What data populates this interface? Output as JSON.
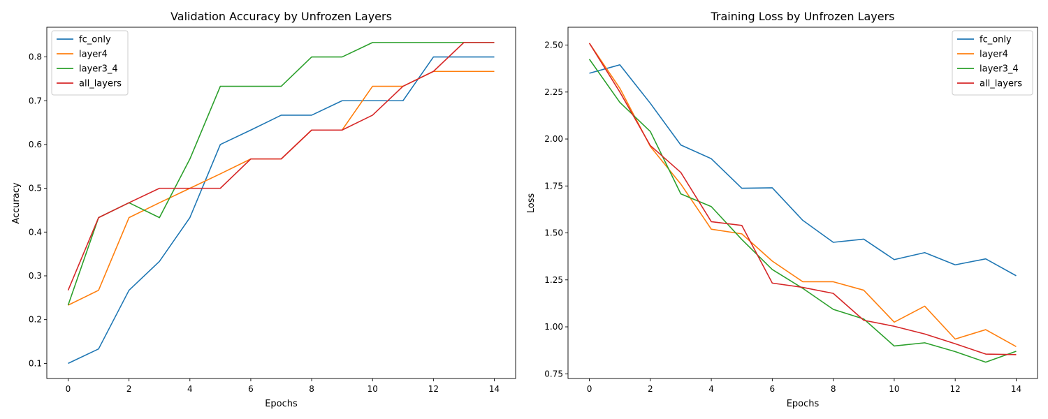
{
  "colors": {
    "fc_only": "#1f77b4",
    "layer4": "#ff7f0e",
    "layer3_4": "#2ca02c",
    "all_layers": "#d62728"
  },
  "chart_data": [
    {
      "type": "line",
      "title": "Validation Accuracy by Unfrozen Layers",
      "xlabel": "Epochs",
      "ylabel": "Accuracy",
      "x": [
        0,
        1,
        2,
        3,
        4,
        5,
        6,
        7,
        8,
        9,
        10,
        11,
        12,
        13,
        14
      ],
      "xlim": [
        -0.7,
        14.7
      ],
      "ylim": [
        0.0655,
        0.8679
      ],
      "xticks": [
        0,
        2,
        4,
        6,
        8,
        10,
        12,
        14
      ],
      "yticks": [
        0.1,
        0.2,
        0.3,
        0.4,
        0.5,
        0.6,
        0.7,
        0.8
      ],
      "ytick_labels": [
        "0.1",
        "0.2",
        "0.3",
        "0.4",
        "0.5",
        "0.6",
        "0.7",
        "0.8"
      ],
      "grid": false,
      "legend_position": "upper-left",
      "series": [
        {
          "name": "fc_only",
          "color_key": "fc_only",
          "values": [
            0.1,
            0.133,
            0.267,
            0.333,
            0.433,
            0.6,
            0.633,
            0.667,
            0.667,
            0.7,
            0.7,
            0.7,
            0.8,
            0.8,
            0.8
          ]
        },
        {
          "name": "layer4",
          "color_key": "layer4",
          "values": [
            0.233,
            0.267,
            0.433,
            0.467,
            0.5,
            0.533,
            0.567,
            0.567,
            0.633,
            0.633,
            0.733,
            0.733,
            0.767,
            0.767,
            0.767
          ]
        },
        {
          "name": "layer3_4",
          "color_key": "layer3_4",
          "values": [
            0.233,
            0.433,
            0.467,
            0.433,
            0.567,
            0.733,
            0.733,
            0.733,
            0.8,
            0.8,
            0.833,
            0.833,
            0.833,
            0.833,
            0.833
          ]
        },
        {
          "name": "all_layers",
          "color_key": "all_layers",
          "values": [
            0.267,
            0.433,
            0.467,
            0.5,
            0.5,
            0.5,
            0.567,
            0.567,
            0.633,
            0.633,
            0.667,
            0.733,
            0.767,
            0.833,
            0.833
          ]
        }
      ]
    },
    {
      "type": "line",
      "title": "Training Loss by Unfrozen Layers",
      "xlabel": "Epochs",
      "ylabel": "Loss",
      "x": [
        0,
        1,
        2,
        3,
        4,
        5,
        6,
        7,
        8,
        9,
        10,
        11,
        12,
        13,
        14
      ],
      "xlim": [
        -0.7,
        14.7
      ],
      "ylim": [
        0.725,
        2.595
      ],
      "xticks": [
        0,
        2,
        4,
        6,
        8,
        10,
        12,
        14
      ],
      "yticks": [
        0.75,
        1.0,
        1.25,
        1.5,
        1.75,
        2.0,
        2.25,
        2.5
      ],
      "ytick_labels": [
        "0.75",
        "1.00",
        "1.25",
        "1.50",
        "1.75",
        "2.00",
        "2.25",
        "2.50"
      ],
      "grid": false,
      "legend_position": "upper-right",
      "series": [
        {
          "name": "fc_only",
          "color_key": "fc_only",
          "values": [
            2.35,
            2.395,
            2.19,
            1.968,
            1.895,
            1.738,
            1.74,
            1.567,
            1.45,
            1.467,
            1.358,
            1.395,
            1.33,
            1.362,
            1.272
          ]
        },
        {
          "name": "layer4",
          "color_key": "layer4",
          "values": [
            2.51,
            2.27,
            1.96,
            1.76,
            1.52,
            1.495,
            1.35,
            1.24,
            1.24,
            1.195,
            1.025,
            1.11,
            0.935,
            0.985,
            0.895
          ]
        },
        {
          "name": "layer3_4",
          "color_key": "layer3_4",
          "values": [
            2.425,
            2.195,
            2.04,
            1.708,
            1.64,
            1.465,
            1.305,
            1.205,
            1.093,
            1.042,
            0.898,
            0.915,
            0.868,
            0.812,
            0.87
          ]
        },
        {
          "name": "all_layers",
          "color_key": "all_layers",
          "values": [
            2.51,
            2.25,
            1.965,
            1.822,
            1.56,
            1.54,
            1.233,
            1.21,
            1.178,
            1.035,
            1.003,
            0.962,
            0.91,
            0.855,
            0.852
          ]
        }
      ]
    }
  ]
}
